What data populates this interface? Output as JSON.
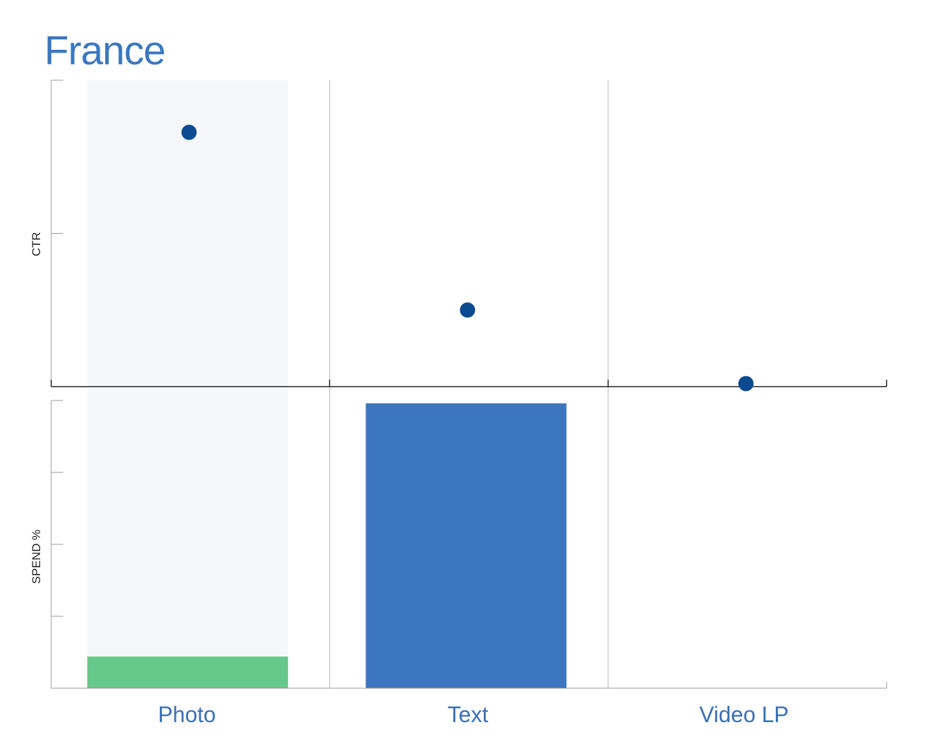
{
  "title": "France",
  "chart_data": {
    "type": "bar",
    "title": "France",
    "categories": [
      "Photo",
      "Text",
      "Video LP"
    ],
    "highlighted_category": "Photo",
    "panels": [
      {
        "name": "ctr",
        "type": "scatter",
        "ylabel": "CTR",
        "ylim": [
          0,
          1
        ],
        "values": [
          0.83,
          0.25,
          0.01
        ],
        "color": "#0b4a8f"
      },
      {
        "name": "spend",
        "type": "bar",
        "ylabel": "SPEND %",
        "ylim": [
          0,
          100
        ],
        "values": [
          11,
          99,
          0
        ],
        "colors": [
          "#68c78a",
          "#3c76c1",
          "#3c76c1"
        ]
      }
    ],
    "grid": true,
    "legend": "none"
  },
  "colors": {
    "title": "#3b77c0",
    "category_label": "#3b6fb5",
    "highlight_band": "#f5f7fb",
    "gridline": "#b8b8b8",
    "axis": "#222222"
  }
}
